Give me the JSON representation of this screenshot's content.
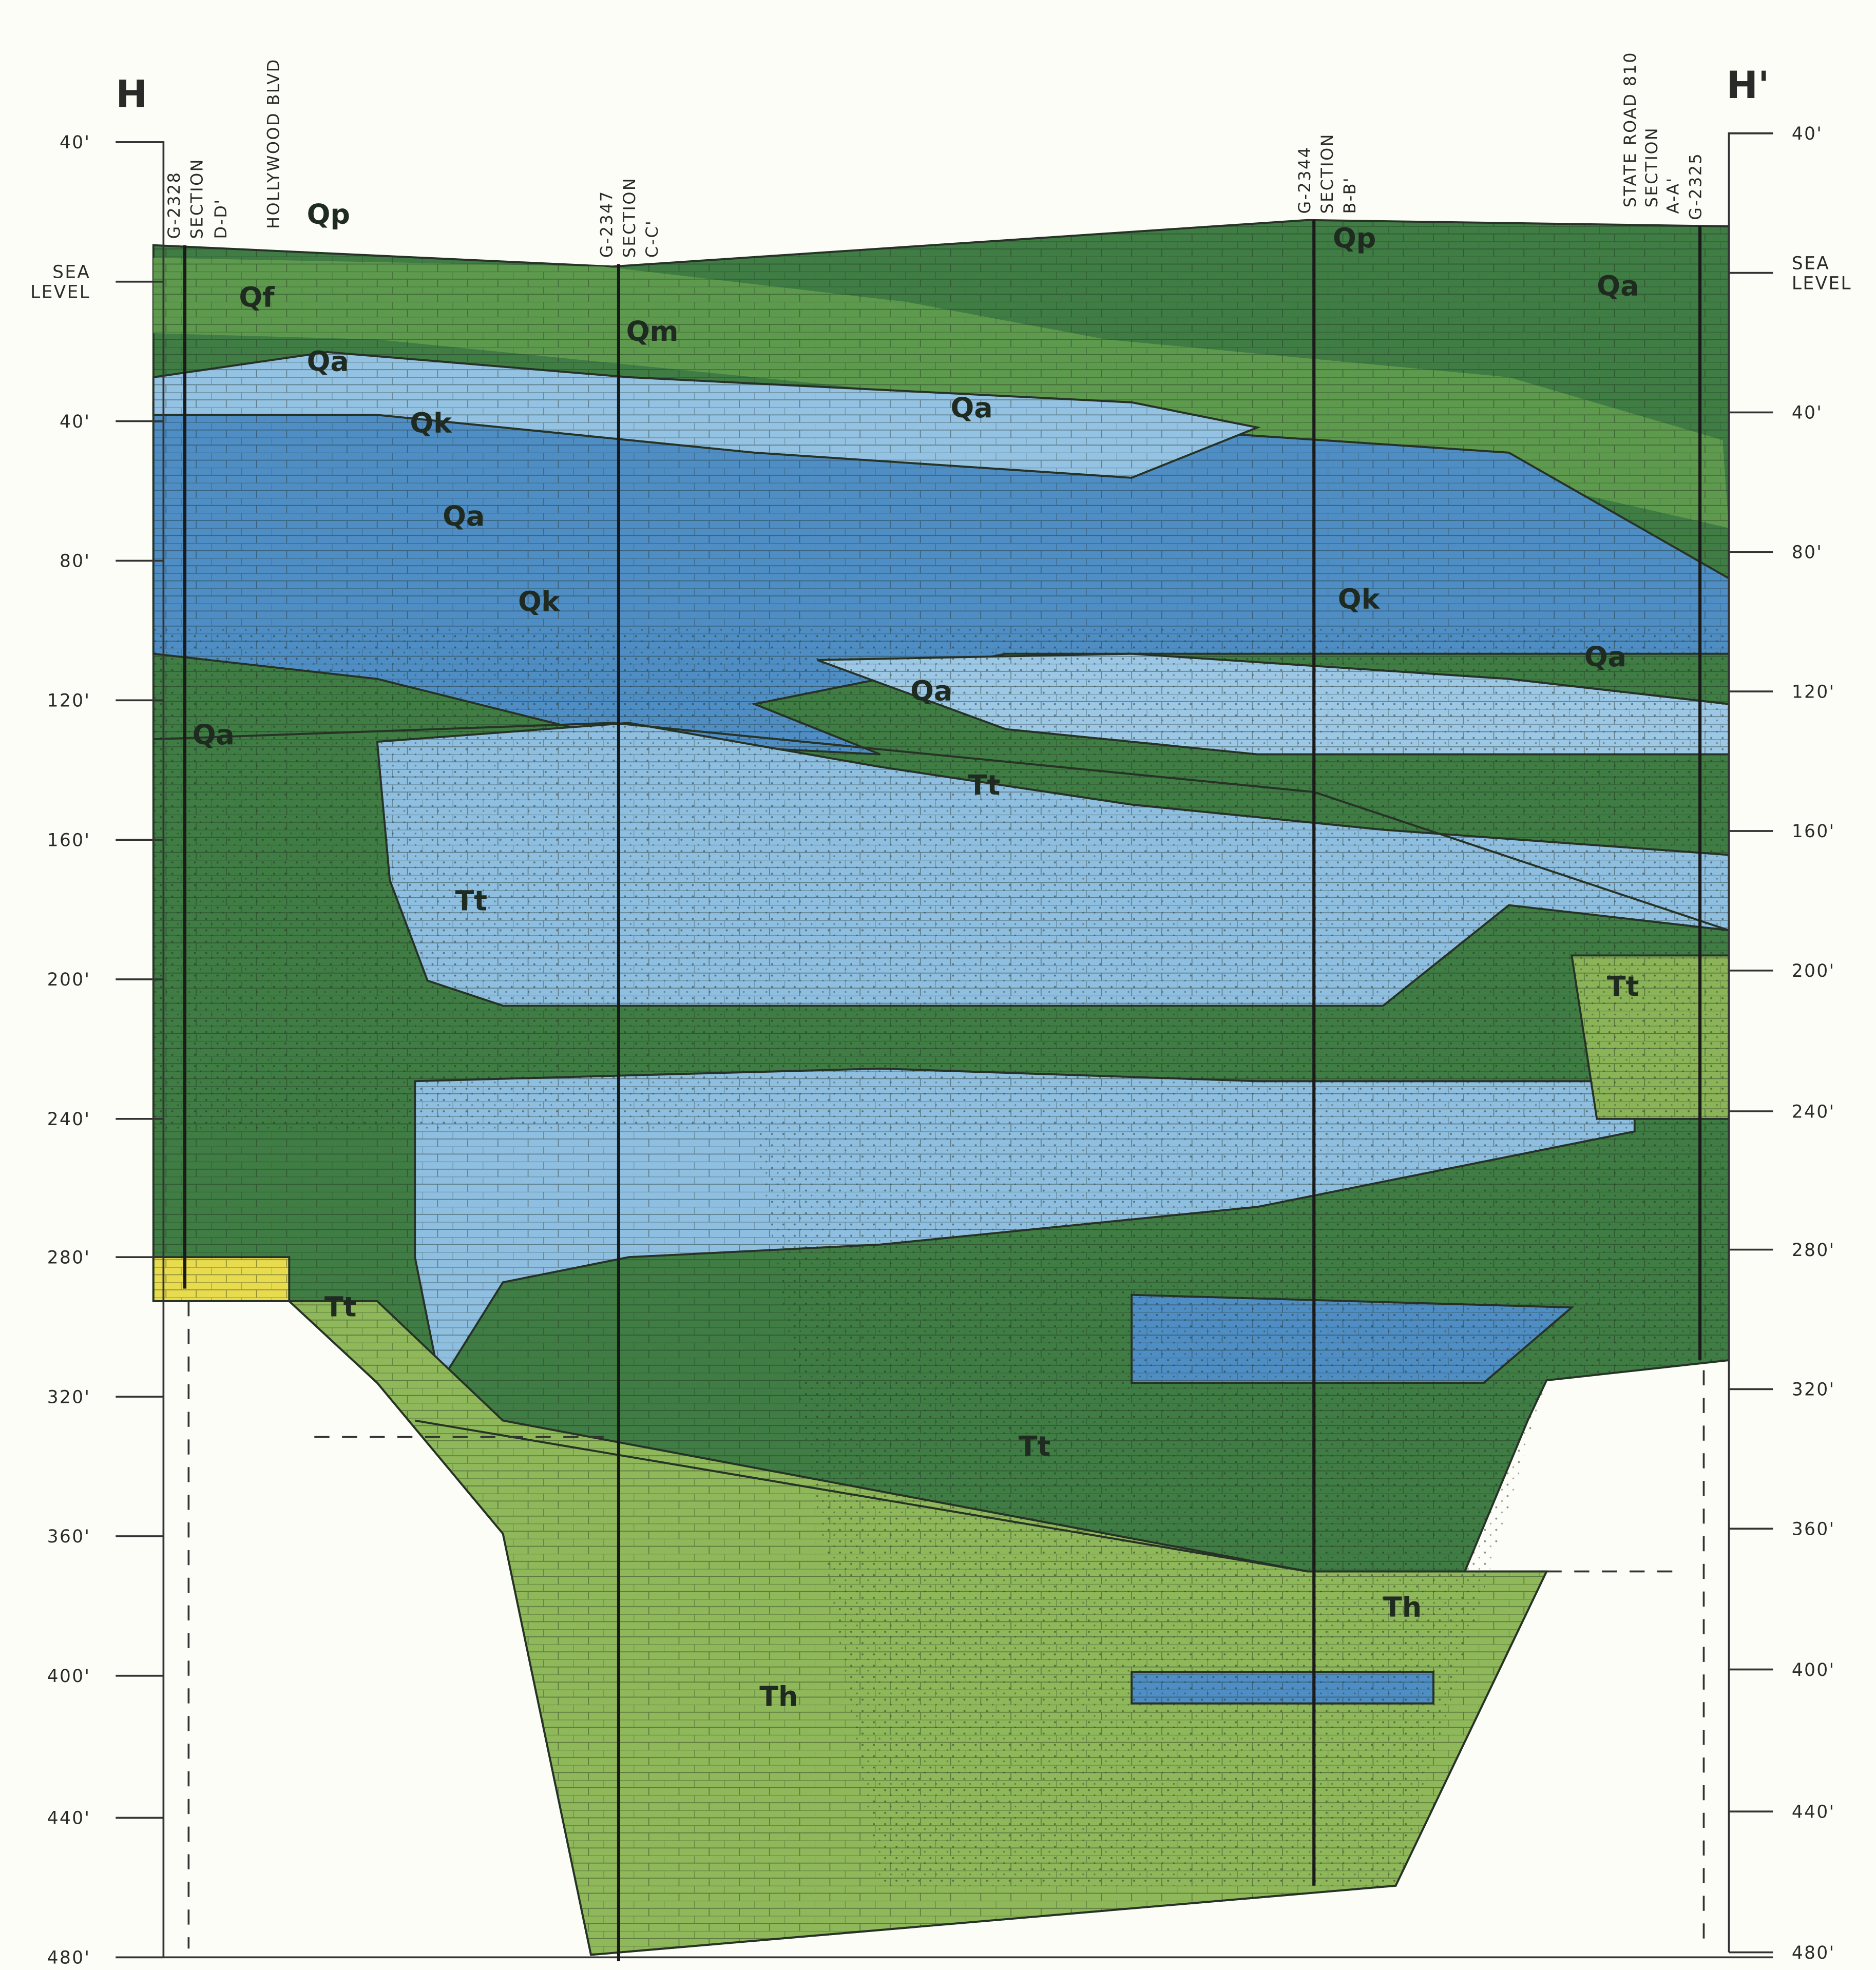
{
  "section": {
    "start": "H",
    "end": "H'"
  },
  "left_scale": [
    [
      "40'"
    ],
    [
      "SEA",
      "LEVEL"
    ],
    [
      "40'"
    ],
    [
      "80'"
    ],
    [
      "120'"
    ],
    [
      "160'"
    ],
    [
      "200'"
    ],
    [
      "240'"
    ],
    [
      "280'"
    ],
    [
      "320'"
    ],
    [
      "360'"
    ],
    [
      "400'"
    ],
    [
      "440'"
    ],
    [
      "480'"
    ]
  ],
  "right_scale": [
    [
      "40'"
    ],
    [
      "SEA",
      "LEVEL"
    ],
    [
      "40'"
    ],
    [
      "80'"
    ],
    [
      "120'"
    ],
    [
      "160'"
    ],
    [
      "200'"
    ],
    [
      "240'"
    ],
    [
      "280'"
    ],
    [
      "320'"
    ],
    [
      "360'"
    ],
    [
      "400'"
    ],
    [
      "440'"
    ],
    [
      "480'"
    ]
  ],
  "wells": [
    [
      "G-2328",
      "SECTION",
      "D-D'"
    ],
    [
      "HOLLYWOOD BLVD"
    ],
    [
      "G-2347",
      "SECTION",
      "C-C'"
    ],
    [
      "G-2344",
      "SECTION",
      "B-B'"
    ],
    [
      "STATE ROAD 810",
      "SECTION",
      "A-A'",
      "G-2325"
    ]
  ],
  "units": [
    "Qp",
    "Qf",
    "Qa",
    "Qm",
    "Qk",
    "Qa",
    "Qk",
    "Qa",
    "Qk",
    "Qa",
    "Qa",
    "Qa",
    "Qa",
    "Qp",
    "Tt",
    "Tt",
    "Tt",
    "Tt",
    "Tt",
    "Th",
    "Th"
  ]
}
